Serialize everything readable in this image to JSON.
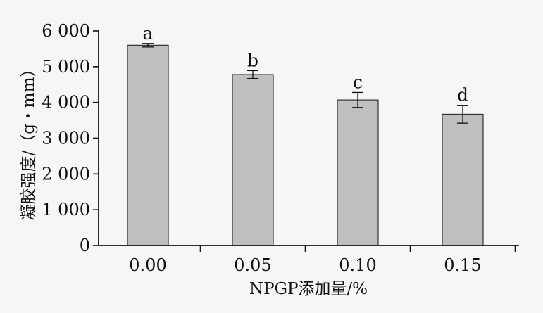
{
  "chart_data": {
    "type": "bar",
    "xlabel": "NPGP添加量/%",
    "ylabel": "凝胶强度/（g・mm）",
    "categories": [
      "0.00",
      "0.05",
      "0.10",
      "0.15"
    ],
    "values": [
      5600,
      4780,
      4070,
      3670
    ],
    "errors": [
      50,
      110,
      210,
      250
    ],
    "significance": [
      "a",
      "b",
      "c",
      "d"
    ],
    "ylim": [
      0,
      6000
    ],
    "yticks": [
      0,
      1000,
      2000,
      3000,
      4000,
      5000,
      6000
    ],
    "ytick_labels": [
      "0",
      "1 000",
      "2 000",
      "3 000",
      "4 000",
      "5 000",
      "6 000"
    ],
    "grid": false,
    "legend": "none",
    "colors": {
      "bar_fill": "#bfbfbf",
      "bar_stroke": "#333333",
      "axis": "#111111",
      "background": "#f6f6f6"
    }
  }
}
